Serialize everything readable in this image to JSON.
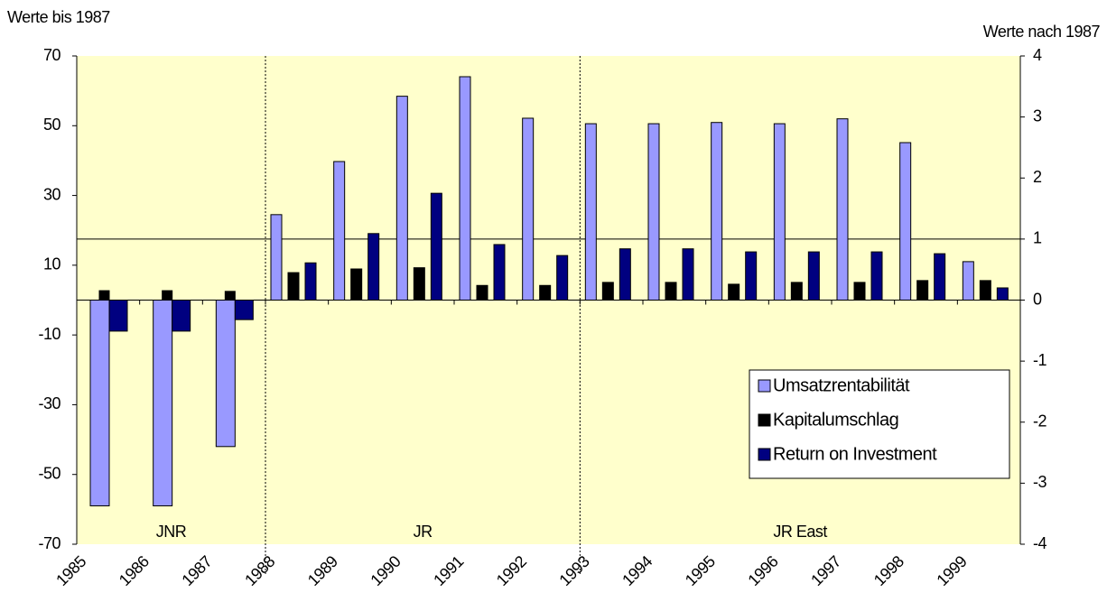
{
  "chart_data": {
    "type": "bar",
    "y_title": "Werte bis 1987",
    "y2_title": "Werte nach 1987",
    "categories": [
      "1985",
      "1986",
      "1987",
      "1988",
      "1989",
      "1990",
      "1991",
      "1992",
      "1993",
      "1994",
      "1995",
      "1996",
      "1997",
      "1998",
      "1999"
    ],
    "series": [
      {
        "name": "Umsatzrentabilität",
        "color": "#9999ff",
        "values": [
          -59,
          -59,
          -42,
          null,
          null,
          null,
          null,
          null,
          null,
          null,
          null,
          null,
          null,
          null,
          null
        ],
        "values_y2": [
          null,
          null,
          null,
          1.4,
          2.27,
          3.34,
          3.66,
          2.98,
          2.89,
          2.89,
          2.91,
          2.89,
          2.97,
          2.58,
          0.63
        ]
      },
      {
        "name": "Kapitalumschlag",
        "color": "#000000",
        "values": [
          2.7,
          2.7,
          2.5,
          null,
          null,
          null,
          null,
          null,
          null,
          null,
          null,
          null,
          null,
          null,
          null
        ],
        "values_y2": [
          null,
          null,
          null,
          0.45,
          0.51,
          0.53,
          0.24,
          0.24,
          0.29,
          0.29,
          0.26,
          0.29,
          0.29,
          0.32,
          0.32
        ]
      },
      {
        "name": "Return on Investment",
        "color": "#000080",
        "values": [
          -8.9,
          -8.9,
          -5.6,
          null,
          null,
          null,
          null,
          null,
          null,
          null,
          null,
          null,
          null,
          null,
          null
        ],
        "values_y2": [
          null,
          null,
          null,
          0.61,
          1.09,
          1.75,
          0.91,
          0.73,
          0.84,
          0.84,
          0.79,
          0.79,
          0.79,
          0.76,
          0.2
        ]
      }
    ],
    "ylim": [
      -70,
      70
    ],
    "yticks": [
      -70,
      -50,
      -30,
      -10,
      10,
      30,
      50,
      70
    ],
    "y2lim": [
      -4,
      4
    ],
    "y2ticks": [
      -4,
      -3,
      -2,
      -1,
      0,
      1,
      2,
      3,
      4
    ],
    "y2_reference_line": 1,
    "regions": [
      "JNR",
      "JR",
      "JR East"
    ],
    "background": "#ffffcc",
    "legend": "lower right"
  }
}
